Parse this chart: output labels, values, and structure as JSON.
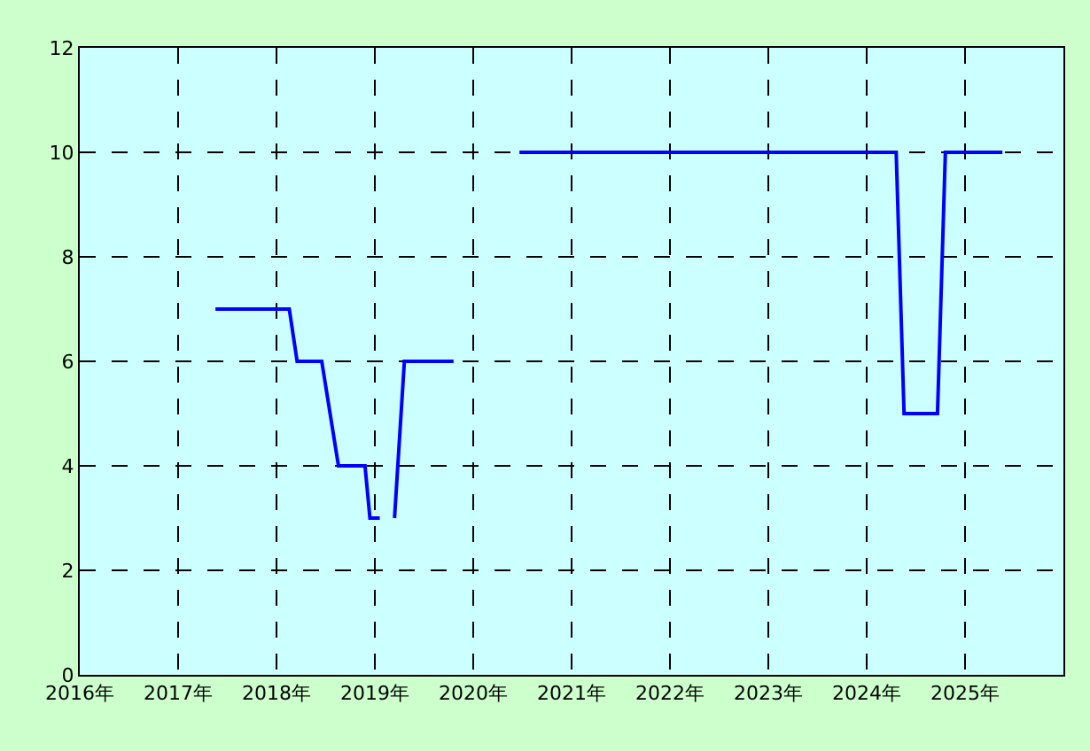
{
  "chart_data": {
    "type": "line",
    "x": [
      2017.38,
      2018.13,
      2018.21,
      2018.46,
      2018.63,
      2018.9,
      2018.95,
      2019.05,
      null,
      2019.2,
      2019.3,
      2019.8,
      null,
      2020.47,
      2024.3,
      2024.38,
      2024.72,
      2024.8,
      2025.38
    ],
    "series": [
      {
        "color": "#0000ff",
        "values": [
          7,
          7,
          6,
          6,
          4,
          4,
          3,
          3,
          null,
          3,
          6,
          6,
          null,
          10,
          10,
          5,
          5,
          10,
          10
        ]
      }
    ],
    "xlim": [
      2016,
      2026
    ],
    "xticks": [
      {
        "value": 2016,
        "label": "2016年"
      },
      {
        "value": 2017,
        "label": "2017年"
      },
      {
        "value": 2018,
        "label": "2018年"
      },
      {
        "value": 2019,
        "label": "2019年"
      },
      {
        "value": 2020,
        "label": "2020年"
      },
      {
        "value": 2021,
        "label": "2021年"
      },
      {
        "value": 2022,
        "label": "2022年"
      },
      {
        "value": 2023,
        "label": "2023年"
      },
      {
        "value": 2024,
        "label": "2024年"
      },
      {
        "value": 2025,
        "label": "2025年"
      }
    ],
    "ylim": [
      0,
      12
    ],
    "yticks": [
      0,
      2,
      4,
      6,
      8,
      10,
      12
    ],
    "grid": true,
    "marker": "none",
    "line_style": "solid"
  }
}
